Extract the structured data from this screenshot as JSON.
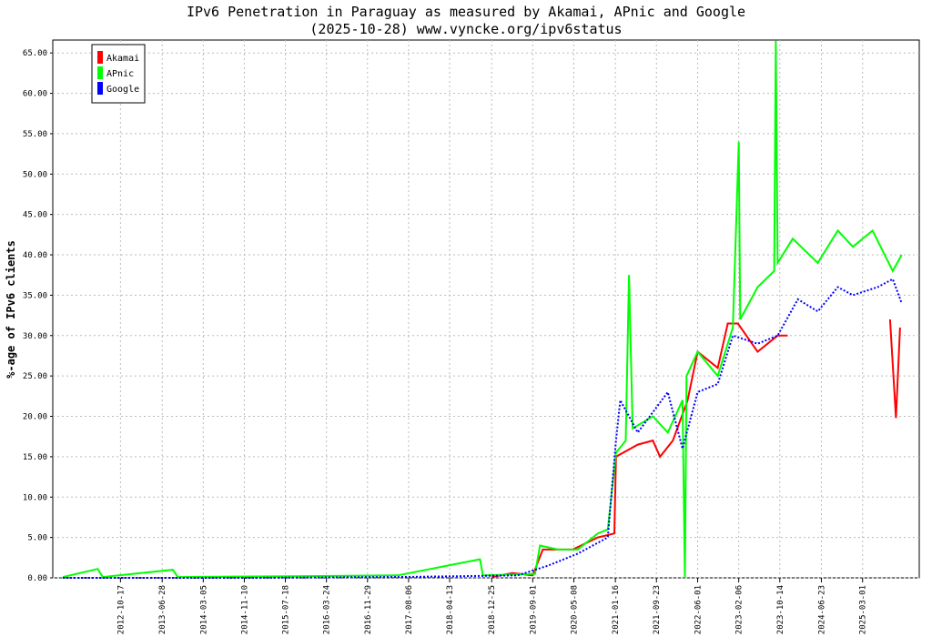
{
  "chart_data": {
    "type": "line",
    "title": "IPv6 Penetration in Paraguay as measured by Akamai, APnic and Google",
    "subtitle": "(2025-10-28) www.vyncke.org/ipv6status",
    "y_label": "%-age of IPv6 clients",
    "xlim": [
      "2011-09-01",
      "2026-02-09"
    ],
    "xticks": [
      "2012-10-17",
      "2013-06-28",
      "2014-03-05",
      "2014-11-10",
      "2015-07-18",
      "2016-03-24",
      "2016-11-29",
      "2017-08-06",
      "2018-04-13",
      "2018-12-25",
      "2019-09-01",
      "2020-05-08",
      "2021-01-16",
      "2021-09-23",
      "2022-06-01",
      "2023-02-06",
      "2023-10-14",
      "2024-06-23",
      "2025-03-01"
    ],
    "ylim": [
      0,
      66.6
    ],
    "yticks": [
      {
        "value": 0,
        "label": "0.00"
      },
      {
        "value": 5,
        "label": "5.00"
      },
      {
        "value": 10,
        "label": "10.00"
      },
      {
        "value": 15,
        "label": "15.00"
      },
      {
        "value": 20,
        "label": "20.00"
      },
      {
        "value": 25,
        "label": "25.00"
      },
      {
        "value": 30,
        "label": "30.00"
      },
      {
        "value": 35,
        "label": "35.00"
      },
      {
        "value": 40,
        "label": "40.00"
      },
      {
        "value": 45,
        "label": "45.00"
      },
      {
        "value": 50,
        "label": "50.00"
      },
      {
        "value": 55,
        "label": "55.00"
      },
      {
        "value": 60,
        "label": "60.00"
      },
      {
        "value": 65,
        "label": "65.00"
      }
    ],
    "grid": true,
    "legend": "top-left",
    "series": [
      {
        "name": "Akamai",
        "color": "#ff0000",
        "style": "solid",
        "x": [
          "2018-12-25",
          "2019-05-01",
          "2019-09-01",
          "2019-11-01",
          "2020-05-01",
          "2020-10-01",
          "2021-01-10",
          "2021-01-20",
          "2021-06-01",
          "2021-09-01",
          "2021-10-15",
          "2022-01-01",
          "2022-04-01",
          "2022-06-01",
          "2022-10-01",
          "2022-12-01",
          "2023-02-01",
          "2023-06-01",
          "2023-10-01",
          "2023-12-01",
          "2024-06-01",
          "2025-08-15",
          "2025-09-20",
          "2025-10-15"
        ],
        "values": [
          0.1,
          0.6,
          0.3,
          3.5,
          3.5,
          5.0,
          5.5,
          15,
          16.5,
          17,
          15,
          17,
          22,
          28,
          26,
          31.5,
          31.5,
          28,
          30,
          30,
          null,
          32,
          19.8,
          31
        ]
      },
      {
        "name": "APnic",
        "color": "#00ff00",
        "style": "solid",
        "x": [
          "2011-11-01",
          "2012-06-01",
          "2012-07-01",
          "2013-09-01",
          "2013-10-01",
          "2015-09-01",
          "2017-06-01",
          "2018-10-15",
          "2018-11-01",
          "2019-09-15",
          "2019-10-15",
          "2020-02-01",
          "2020-06-01",
          "2020-10-01",
          "2020-12-01",
          "2021-01-20",
          "2021-03-20",
          "2021-04-09",
          "2021-05-01",
          "2021-09-01",
          "2021-12-01",
          "2022-03-01",
          "2022-03-15",
          "2022-03-25",
          "2022-06-01",
          "2022-10-01",
          "2023-01-01",
          "2023-02-06",
          "2023-02-15",
          "2023-06-01",
          "2023-09-10",
          "2023-09-20",
          "2023-10-01",
          "2024-01-01",
          "2024-06-01",
          "2024-10-01",
          "2025-01-01",
          "2025-05-01",
          "2025-09-01",
          "2025-10-25"
        ],
        "values": [
          0.1,
          1.1,
          0.1,
          1.0,
          0.1,
          0.2,
          0.3,
          2.3,
          0.3,
          0.5,
          4.0,
          3.5,
          3.5,
          5.5,
          6.0,
          15.5,
          17,
          37.5,
          18.5,
          20,
          18,
          22,
          0,
          25,
          28,
          25,
          31,
          54,
          32,
          36,
          38,
          66.5,
          39,
          42,
          39,
          43,
          41,
          43,
          38,
          40
        ]
      },
      {
        "name": "Google",
        "color": "#0000ff",
        "style": "dotted",
        "x": [
          "2011-11-01",
          "2015-01-01",
          "2017-06-01",
          "2019-06-01",
          "2019-12-01",
          "2020-06-01",
          "2020-12-01",
          "2021-01-20",
          "2021-02-15",
          "2021-06-01",
          "2021-12-01",
          "2022-03-01",
          "2022-06-01",
          "2022-10-01",
          "2023-01-01",
          "2023-06-01",
          "2023-10-01",
          "2024-02-01",
          "2024-06-01",
          "2024-10-01",
          "2025-01-01",
          "2025-06-01",
          "2025-09-01",
          "2025-10-25"
        ],
        "values": [
          0,
          0,
          0.1,
          0.3,
          1.5,
          3,
          5,
          17,
          22,
          18,
          23,
          16,
          23,
          24,
          30,
          29,
          30,
          34.5,
          33,
          36,
          35,
          36,
          37,
          34
        ]
      }
    ]
  }
}
